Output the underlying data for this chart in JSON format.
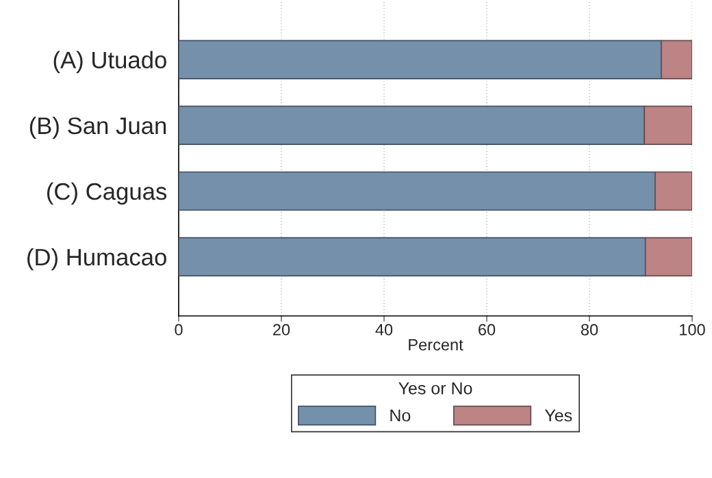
{
  "chart_data": {
    "type": "bar",
    "orientation": "horizontal",
    "stacked": true,
    "categories": [
      "(A) Utuado",
      "(B) San Juan",
      "(C) Caguas",
      "(D) Humacao"
    ],
    "series": [
      {
        "name": "No",
        "color": "#7590aa",
        "values": [
          94.0,
          90.7,
          92.8,
          90.9
        ]
      },
      {
        "name": "Yes",
        "color": "#bc8484",
        "values": [
          6.0,
          9.3,
          7.2,
          9.1
        ]
      }
    ],
    "xlabel": "Percent",
    "legend_title": "Yes or No",
    "legend": "bottom",
    "xlim": [
      0,
      100
    ],
    "xticks": [
      0,
      20,
      40,
      60,
      80,
      100
    ],
    "grid": "x"
  }
}
